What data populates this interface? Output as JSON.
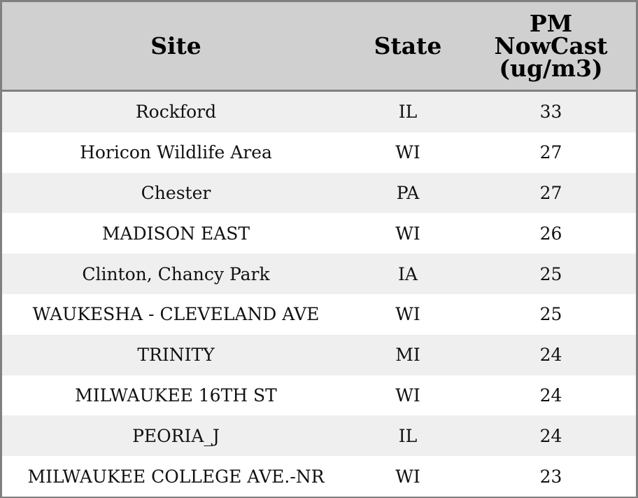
{
  "table": {
    "header": [
      "Site",
      "State",
      "PM NowCast (ug/m3)"
    ],
    "rows": [
      [
        "Rockford",
        "IL",
        33
      ],
      [
        "Horicon Wildlife Area",
        "WI",
        27
      ],
      [
        "Chester",
        "PA",
        27
      ],
      [
        "MADISON EAST",
        "WI",
        26
      ],
      [
        "Clinton, Chancy Park",
        "IA",
        25
      ],
      [
        "WAUKESHA - CLEVELAND AVE",
        "WI",
        25
      ],
      [
        "TRINITY",
        "MI",
        24
      ],
      [
        "MILWAUKEE 16TH ST",
        "WI",
        24
      ],
      [
        "PEORIA_J",
        "IL",
        24
      ],
      [
        "MILWAUKEE COLLEGE AVE.-NR",
        "WI",
        23
      ]
    ]
  }
}
